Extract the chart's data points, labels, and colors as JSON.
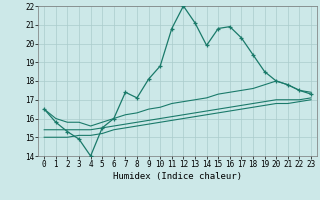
{
  "title": "",
  "xlabel": "Humidex (Indice chaleur)",
  "bg_color": "#cce8e8",
  "grid_color": "#aacccc",
  "line_color": "#1a7a6a",
  "x_main": [
    0,
    1,
    2,
    3,
    4,
    5,
    6,
    7,
    8,
    9,
    10,
    11,
    12,
    13,
    14,
    15,
    16,
    17,
    18,
    19,
    20,
    21,
    22,
    23
  ],
  "y_main": [
    16.5,
    15.8,
    15.3,
    14.9,
    14.0,
    15.5,
    16.0,
    17.4,
    17.1,
    18.1,
    18.8,
    20.8,
    22.0,
    21.1,
    19.9,
    20.8,
    20.9,
    20.3,
    19.4,
    18.5,
    18.0,
    17.8,
    17.5,
    17.3
  ],
  "y_line1": [
    16.5,
    16.0,
    15.8,
    15.8,
    15.6,
    15.8,
    16.0,
    16.2,
    16.3,
    16.5,
    16.6,
    16.8,
    16.9,
    17.0,
    17.1,
    17.3,
    17.4,
    17.5,
    17.6,
    17.8,
    18.0,
    17.8,
    17.5,
    17.4
  ],
  "y_line2": [
    15.4,
    15.4,
    15.4,
    15.4,
    15.4,
    15.5,
    15.6,
    15.7,
    15.8,
    15.9,
    16.0,
    16.1,
    16.2,
    16.3,
    16.4,
    16.5,
    16.6,
    16.7,
    16.8,
    16.9,
    17.0,
    17.0,
    17.0,
    17.1
  ],
  "y_line3": [
    15.0,
    15.0,
    15.0,
    15.1,
    15.1,
    15.2,
    15.4,
    15.5,
    15.6,
    15.7,
    15.8,
    15.9,
    16.0,
    16.1,
    16.2,
    16.3,
    16.4,
    16.5,
    16.6,
    16.7,
    16.8,
    16.8,
    16.9,
    17.0
  ],
  "ylim": [
    14,
    22
  ],
  "xlim": [
    -0.5,
    23.5
  ],
  "yticks": [
    14,
    15,
    16,
    17,
    18,
    19,
    20,
    21,
    22
  ],
  "xticks": [
    0,
    1,
    2,
    3,
    4,
    5,
    6,
    7,
    8,
    9,
    10,
    11,
    12,
    13,
    14,
    15,
    16,
    17,
    18,
    19,
    20,
    21,
    22,
    23
  ],
  "tick_fontsize": 5.5,
  "xlabel_fontsize": 6.5
}
